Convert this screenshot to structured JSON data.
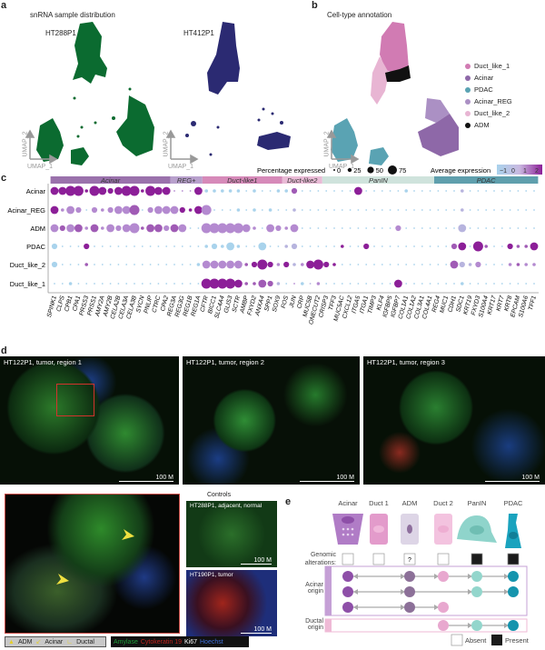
{
  "panels": {
    "a": "a",
    "b": "b",
    "c": "c",
    "d": "d",
    "e": "e"
  },
  "umap_a": {
    "title": "snRNA sample distribution",
    "samples": [
      {
        "name": "HT288P1",
        "color": "#0b6b30"
      },
      {
        "name": "HT412P1",
        "color": "#2b2a72"
      }
    ],
    "xlabel": "UMAP_1",
    "ylabel": "UMAP_2"
  },
  "umap_b": {
    "title": "Cell-type annotation",
    "xlabel": "UMAP_1",
    "ylabel": "UMAP_2",
    "legend": [
      {
        "label": "Duct_like_1",
        "color": "#d17bb3"
      },
      {
        "label": "Acinar",
        "color": "#8e68a8"
      },
      {
        "label": "PDAC",
        "color": "#5aa3b3"
      },
      {
        "label": "Acinar_REG",
        "color": "#ab90c4"
      },
      {
        "label": "Duct_like_2",
        "color": "#e8b5d3"
      },
      {
        "label": "ADM",
        "color": "#111111"
      }
    ]
  },
  "chart_data": {
    "type": "dotplot",
    "legend_size_title": "Percentage expressed",
    "size_ticks": [
      "0",
      "25",
      "50",
      "75"
    ],
    "legend_color_title": "Average expression",
    "color_ticks": [
      "−1",
      "0",
      "1",
      "2"
    ],
    "groups": [
      {
        "label": "Acinar",
        "color": "#9a72ac",
        "span": 15
      },
      {
        "label": "REG+",
        "color": "#b8a0cc",
        "span": 4
      },
      {
        "label": "Duct-like1",
        "color": "#d68ab9",
        "span": 10
      },
      {
        "label": "Duct-like2",
        "color": "#e9bbd6",
        "span": 5
      },
      {
        "label": "PanIN",
        "color": "#cfe3dc",
        "span": 14
      },
      {
        "label": "PDAC",
        "color": "#5f9fad",
        "span": 13
      }
    ],
    "genes": [
      "SPINK1",
      "CLPS",
      "CPB1",
      "CPA1",
      "PRSS3",
      "PRSS1",
      "AMY2A",
      "AMY2B",
      "CELA2B",
      "CELA3A",
      "CELA3B",
      "SYCN",
      "PNLIP",
      "CTRC",
      "CPA2",
      "REG3A",
      "REG3G",
      "REG1B",
      "REG1A",
      "CFTR",
      "BICC1",
      "SLC4A4",
      "GLIS3",
      "SCTR",
      "AMBP",
      "FXYD2",
      "ANXA4",
      "SPP1",
      "SOX9",
      "FOS",
      "JUN",
      "CRP",
      "MUC5B",
      "ONECUT2",
      "CRISP3",
      "TFF3",
      "MUC5AC",
      "CXCL12",
      "ITGA5",
      "ITGA1",
      "TIMP3",
      "KLF4",
      "IGFBP5",
      "IGFBP7",
      "COL1A1",
      "COL1A2",
      "COL3A1",
      "COL4A1",
      "REG4",
      "MUC1",
      "CDH1",
      "SDC1",
      "KRT19",
      "FXYD3",
      "S100A4",
      "KRT17",
      "KRT7",
      "KRT8",
      "EPCAM",
      "S100A6",
      "TFF1"
    ],
    "pct_levels_legend": "0=~0%,1=~10%,2=~30%,3=~55%,4=~75%",
    "rows": [
      {
        "label": "Acinar",
        "pct": "3344143234414330003111110100112000000030000010000001000000000",
        "expr": "4444444444444442224000000000003000000040000000000001000000000"
      },
      {
        "label": "Acinar_REG",
        "pct": "3132021233402333213400010101001000000000000000000001000000000",
        "expr": "4222022222302222444200000000001000000000000000000001000000000"
      },
      {
        "label": "ADM",
        "pct": "3233131323413323300444443103213000000000000200000003000000000",
        "expr": "2323232222233323200222222202222000000000000200000001000000000"
      },
      {
        "label": "PDAC",
        "pct": "2000200000000000000121310030012000001002000000000023041002113",
        "expr": "0000400000000000000000000000011000004004000000000034043004334"
      },
      {
        "label": "Duct_like_2",
        "pct": "2000100000000000001333331242121134210000000000000032120001111",
        "expr": "0000300000000000000222223444241244440000000000000031120002322"
      },
      {
        "label": "Duct_like_1",
        "pct": "0010000000000000000444431132100101000000000300000001000000000",
        "expr": "0000000000000000000444443333102012000000000400000000000000000"
      }
    ]
  },
  "panel_d": {
    "images": [
      "HT122P1, tumor, region 1",
      "HT122P1, tumor, region 2",
      "HT122P1, tumor, region 3"
    ],
    "scale": "100  M",
    "controls_title": "Controls",
    "controls": [
      "HT288P1, adjacent, normal",
      "HT190P1, tumor"
    ],
    "arrow_legend": [
      {
        "label": "ADM",
        "icon": "arrowhead-icon"
      },
      {
        "label": "Acinar",
        "icon": "arrow-icon"
      },
      {
        "label": "Ductal",
        "icon": "l-bracket-icon"
      }
    ],
    "stains": [
      {
        "label": "Amylase",
        "color": "#1f9e3a"
      },
      {
        "label": "Cytokeratin 19",
        "color": "#c0241e"
      },
      {
        "label": "Ki67",
        "color": "#ffffff"
      },
      {
        "label": "Hoechst",
        "color": "#3f6fd8"
      }
    ]
  },
  "panel_e": {
    "columns": [
      {
        "label": "Acinar",
        "color": "#b07cc6"
      },
      {
        "label": "Duct 1",
        "color": "#e39bcb"
      },
      {
        "label": "ADM",
        "color": "#ddd5e6"
      },
      {
        "label": "Duct 2",
        "color": "#f3c3df"
      },
      {
        "label": "PanIN",
        "color": "#8fd4cb"
      },
      {
        "label": "PDAC",
        "color": "#1aa3be"
      }
    ],
    "genomic_label": "Genomic alterations:",
    "genomic": [
      "absent",
      "absent",
      "?",
      "absent",
      "present",
      "present"
    ],
    "question": "?",
    "acinar_origin": "Acinar origin",
    "ductal_origin": "Ductal origin",
    "absent": "Absent",
    "present": "Present"
  }
}
